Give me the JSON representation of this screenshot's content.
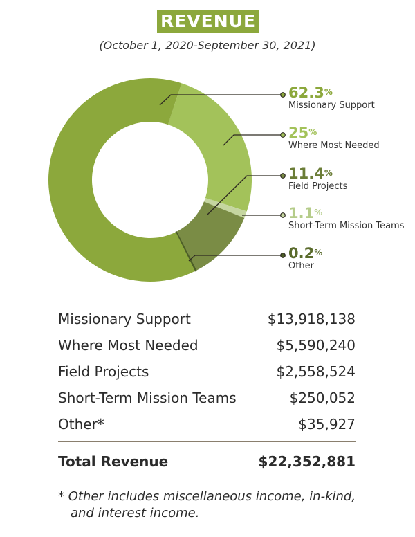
{
  "title": "REVENUE",
  "subtitle": "(October 1, 2020-September 30, 2021)",
  "chart_data": {
    "type": "pie",
    "title": "REVENUE",
    "slices": [
      {
        "label": "Missionary Support",
        "pct": "62.3",
        "value": 62.3,
        "color": "#8ca83c",
        "pct_color": "#8ca83c"
      },
      {
        "label": "Where Most Needed",
        "pct": "25",
        "value": 25,
        "color": "#a3c25a",
        "pct_color": "#a3c25a"
      },
      {
        "label": "Field Projects",
        "pct": "11.4",
        "value": 11.4,
        "color": "#7a8c45",
        "pct_color": "#6b7d37"
      },
      {
        "label": "Short-Term Mission Teams",
        "pct": "1.1",
        "value": 1.1,
        "color": "#c5d6a0",
        "pct_color": "#b5cc8a"
      },
      {
        "label": "Other",
        "pct": "0.2",
        "value": 0.2,
        "color": "#4d5e28",
        "pct_color": "#5a6b2c"
      }
    ],
    "percent_sign": "%"
  },
  "table": {
    "rows": [
      {
        "label": "Missionary Support",
        "amount": "$13,918,138"
      },
      {
        "label": "Where Most Needed",
        "amount": "$5,590,240"
      },
      {
        "label": "Field Projects",
        "amount": "$2,558,524"
      },
      {
        "label": "Short-Term Mission Teams",
        "amount": "$250,052"
      },
      {
        "label": "Other*",
        "amount": "$35,927"
      }
    ],
    "total": {
      "label": "Total Revenue",
      "amount": "$22,352,881"
    }
  },
  "footnote": "* Other includes miscellaneous income, in-kind, and interest income."
}
